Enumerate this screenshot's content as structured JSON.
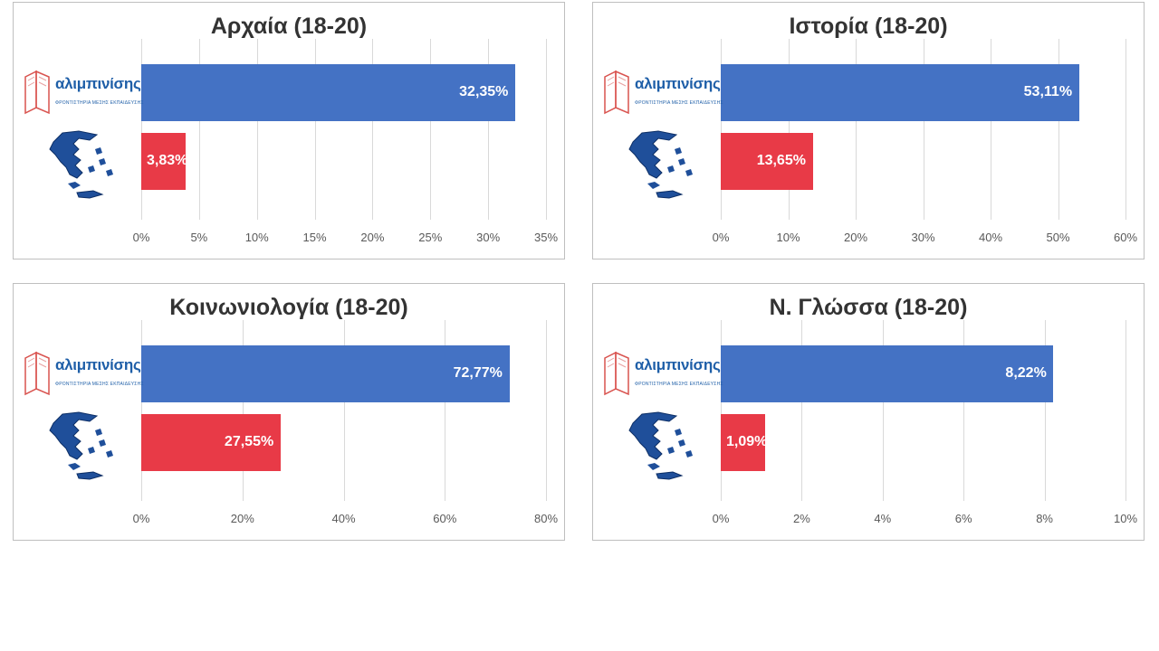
{
  "logo": {
    "name": "αλιμπινίσης",
    "tagline": "ΦΡΟΝΤΙΣΤΗΡΙΑ ΜΕΣΗΣ ΕΚΠΑΙΔΕΥΣΗΣ"
  },
  "colors": {
    "school_bar": "#4472c4",
    "national_bar": "#e83a47",
    "gridline": "#d9d9d9",
    "title": "#333333",
    "tick": "#595959"
  },
  "icons": [
    "book-logo-icon",
    "greece-map-icon"
  ],
  "chart_data": [
    {
      "type": "bar",
      "orientation": "horizontal",
      "title": "Αρχαία (18-20)",
      "series": [
        {
          "icon": "book-logo-icon",
          "value": 32.35,
          "label": "32,35%"
        },
        {
          "icon": "greece-map-icon",
          "value": 3.83,
          "label": "3,83%"
        }
      ],
      "xlim": [
        0,
        35
      ],
      "ticks": [
        "0%",
        "5%",
        "10%",
        "15%",
        "20%",
        "25%",
        "30%",
        "35%"
      ],
      "grid": true
    },
    {
      "type": "bar",
      "orientation": "horizontal",
      "title": "Ιστορία (18-20)",
      "series": [
        {
          "icon": "book-logo-icon",
          "value": 53.11,
          "label": "53,11%"
        },
        {
          "icon": "greece-map-icon",
          "value": 13.65,
          "label": "13,65%"
        }
      ],
      "xlim": [
        0,
        60
      ],
      "ticks": [
        "0%",
        "10%",
        "20%",
        "30%",
        "40%",
        "50%",
        "60%"
      ],
      "grid": true
    },
    {
      "type": "bar",
      "orientation": "horizontal",
      "title": "Κοινωνιολογία (18-20)",
      "series": [
        {
          "icon": "book-logo-icon",
          "value": 72.77,
          "label": "72,77%"
        },
        {
          "icon": "greece-map-icon",
          "value": 27.55,
          "label": "27,55%"
        }
      ],
      "xlim": [
        0,
        80
      ],
      "ticks": [
        "0%",
        "20%",
        "40%",
        "60%",
        "80%"
      ],
      "grid": true
    },
    {
      "type": "bar",
      "orientation": "horizontal",
      "title": "Ν. Γλώσσα (18-20)",
      "series": [
        {
          "icon": "book-logo-icon",
          "value": 8.22,
          "label": "8,22%"
        },
        {
          "icon": "greece-map-icon",
          "value": 1.09,
          "label": "1,09%"
        }
      ],
      "xlim": [
        0,
        10
      ],
      "ticks": [
        "0%",
        "2%",
        "4%",
        "6%",
        "8%",
        "10%"
      ],
      "grid": true
    }
  ]
}
